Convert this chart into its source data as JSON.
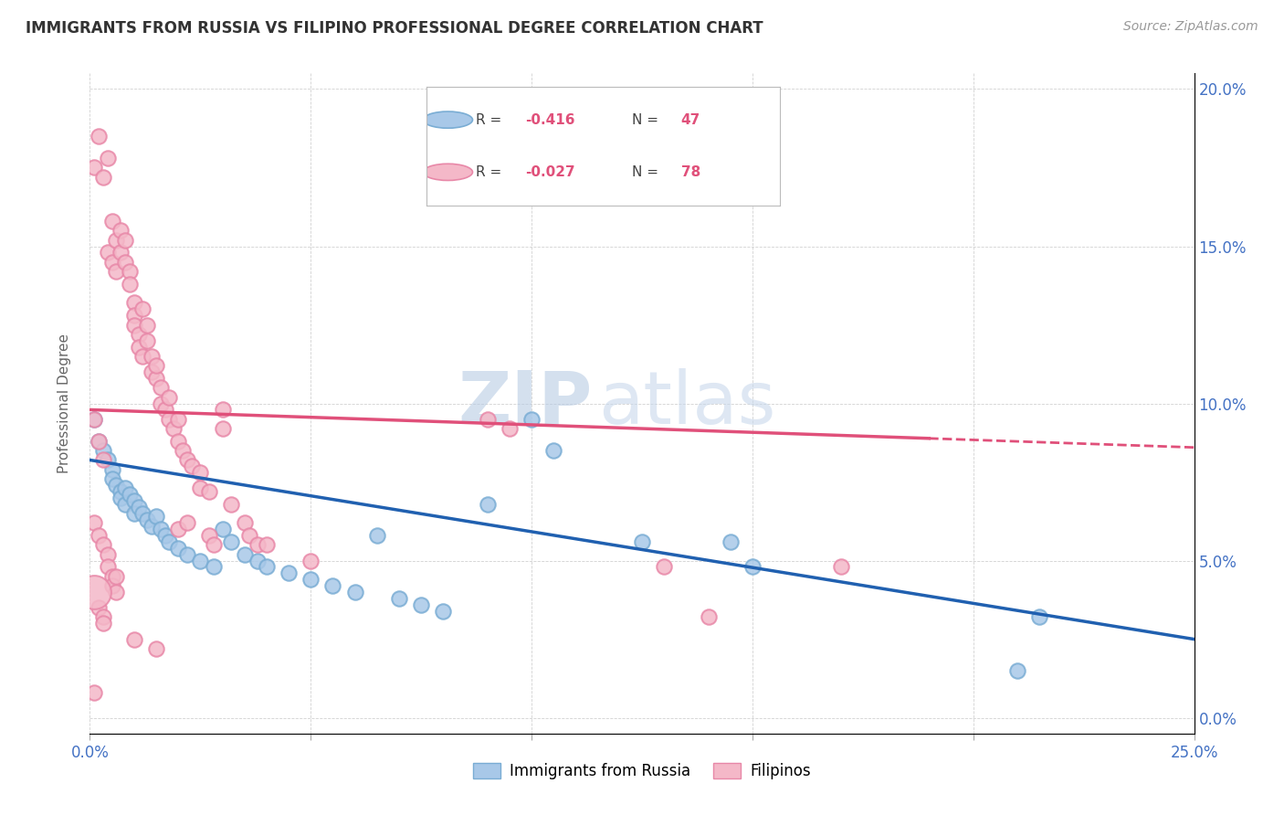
{
  "title": "IMMIGRANTS FROM RUSSIA VS FILIPINO PROFESSIONAL DEGREE CORRELATION CHART",
  "source": "Source: ZipAtlas.com",
  "ylabel": "Professional Degree",
  "xlim": [
    0.0,
    0.25
  ],
  "ylim": [
    -0.005,
    0.205
  ],
  "russia_color": "#a8c8e8",
  "russia_edge_color": "#7aadd4",
  "filipino_color": "#f4b8c8",
  "filipino_edge_color": "#e888a8",
  "russia_line_color": "#2060b0",
  "filipino_line_color": "#e0507a",
  "background": "#ffffff",
  "russia_scatter": [
    [
      0.001,
      0.095
    ],
    [
      0.002,
      0.088
    ],
    [
      0.003,
      0.085
    ],
    [
      0.004,
      0.082
    ],
    [
      0.005,
      0.079
    ],
    [
      0.005,
      0.076
    ],
    [
      0.006,
      0.074
    ],
    [
      0.007,
      0.072
    ],
    [
      0.007,
      0.07
    ],
    [
      0.008,
      0.073
    ],
    [
      0.008,
      0.068
    ],
    [
      0.009,
      0.071
    ],
    [
      0.01,
      0.069
    ],
    [
      0.01,
      0.065
    ],
    [
      0.011,
      0.067
    ],
    [
      0.012,
      0.065
    ],
    [
      0.013,
      0.063
    ],
    [
      0.014,
      0.061
    ],
    [
      0.015,
      0.064
    ],
    [
      0.016,
      0.06
    ],
    [
      0.017,
      0.058
    ],
    [
      0.018,
      0.056
    ],
    [
      0.02,
      0.054
    ],
    [
      0.022,
      0.052
    ],
    [
      0.025,
      0.05
    ],
    [
      0.028,
      0.048
    ],
    [
      0.03,
      0.06
    ],
    [
      0.032,
      0.056
    ],
    [
      0.035,
      0.052
    ],
    [
      0.038,
      0.05
    ],
    [
      0.04,
      0.048
    ],
    [
      0.045,
      0.046
    ],
    [
      0.05,
      0.044
    ],
    [
      0.055,
      0.042
    ],
    [
      0.06,
      0.04
    ],
    [
      0.065,
      0.058
    ],
    [
      0.07,
      0.038
    ],
    [
      0.075,
      0.036
    ],
    [
      0.08,
      0.034
    ],
    [
      0.09,
      0.068
    ],
    [
      0.1,
      0.095
    ],
    [
      0.105,
      0.085
    ],
    [
      0.125,
      0.056
    ],
    [
      0.145,
      0.056
    ],
    [
      0.15,
      0.048
    ],
    [
      0.215,
      0.032
    ],
    [
      0.21,
      0.015
    ]
  ],
  "filipino_scatter": [
    [
      0.001,
      0.175
    ],
    [
      0.002,
      0.185
    ],
    [
      0.003,
      0.172
    ],
    [
      0.004,
      0.178
    ],
    [
      0.004,
      0.148
    ],
    [
      0.005,
      0.158
    ],
    [
      0.005,
      0.145
    ],
    [
      0.006,
      0.152
    ],
    [
      0.006,
      0.142
    ],
    [
      0.007,
      0.155
    ],
    [
      0.007,
      0.148
    ],
    [
      0.008,
      0.152
    ],
    [
      0.008,
      0.145
    ],
    [
      0.009,
      0.142
    ],
    [
      0.009,
      0.138
    ],
    [
      0.01,
      0.132
    ],
    [
      0.01,
      0.128
    ],
    [
      0.01,
      0.125
    ],
    [
      0.011,
      0.122
    ],
    [
      0.011,
      0.118
    ],
    [
      0.012,
      0.115
    ],
    [
      0.012,
      0.13
    ],
    [
      0.013,
      0.125
    ],
    [
      0.013,
      0.12
    ],
    [
      0.014,
      0.115
    ],
    [
      0.014,
      0.11
    ],
    [
      0.015,
      0.108
    ],
    [
      0.015,
      0.112
    ],
    [
      0.016,
      0.105
    ],
    [
      0.016,
      0.1
    ],
    [
      0.017,
      0.098
    ],
    [
      0.018,
      0.102
    ],
    [
      0.018,
      0.095
    ],
    [
      0.019,
      0.092
    ],
    [
      0.02,
      0.095
    ],
    [
      0.02,
      0.088
    ],
    [
      0.021,
      0.085
    ],
    [
      0.022,
      0.082
    ],
    [
      0.023,
      0.08
    ],
    [
      0.001,
      0.095
    ],
    [
      0.002,
      0.088
    ],
    [
      0.003,
      0.082
    ],
    [
      0.001,
      0.062
    ],
    [
      0.002,
      0.058
    ],
    [
      0.003,
      0.055
    ],
    [
      0.004,
      0.052
    ],
    [
      0.004,
      0.048
    ],
    [
      0.005,
      0.045
    ],
    [
      0.005,
      0.042
    ],
    [
      0.006,
      0.04
    ],
    [
      0.006,
      0.045
    ],
    [
      0.025,
      0.078
    ],
    [
      0.025,
      0.073
    ],
    [
      0.027,
      0.072
    ],
    [
      0.03,
      0.098
    ],
    [
      0.03,
      0.092
    ],
    [
      0.032,
      0.068
    ],
    [
      0.035,
      0.062
    ],
    [
      0.036,
      0.058
    ],
    [
      0.038,
      0.055
    ],
    [
      0.001,
      0.008
    ],
    [
      0.002,
      0.035
    ],
    [
      0.003,
      0.032
    ],
    [
      0.003,
      0.03
    ],
    [
      0.015,
      0.022
    ],
    [
      0.01,
      0.025
    ],
    [
      0.02,
      0.06
    ],
    [
      0.022,
      0.062
    ],
    [
      0.027,
      0.058
    ],
    [
      0.028,
      0.055
    ],
    [
      0.09,
      0.095
    ],
    [
      0.095,
      0.092
    ],
    [
      0.04,
      0.055
    ],
    [
      0.17,
      0.048
    ],
    [
      0.05,
      0.05
    ],
    [
      0.13,
      0.048
    ],
    [
      0.14,
      0.032
    ]
  ],
  "russia_line": [
    [
      0.0,
      0.082
    ],
    [
      0.25,
      0.025
    ]
  ],
  "filipino_line": [
    [
      0.0,
      0.098
    ],
    [
      0.25,
      0.086
    ]
  ],
  "filipino_line_solid_end": 0.19
}
